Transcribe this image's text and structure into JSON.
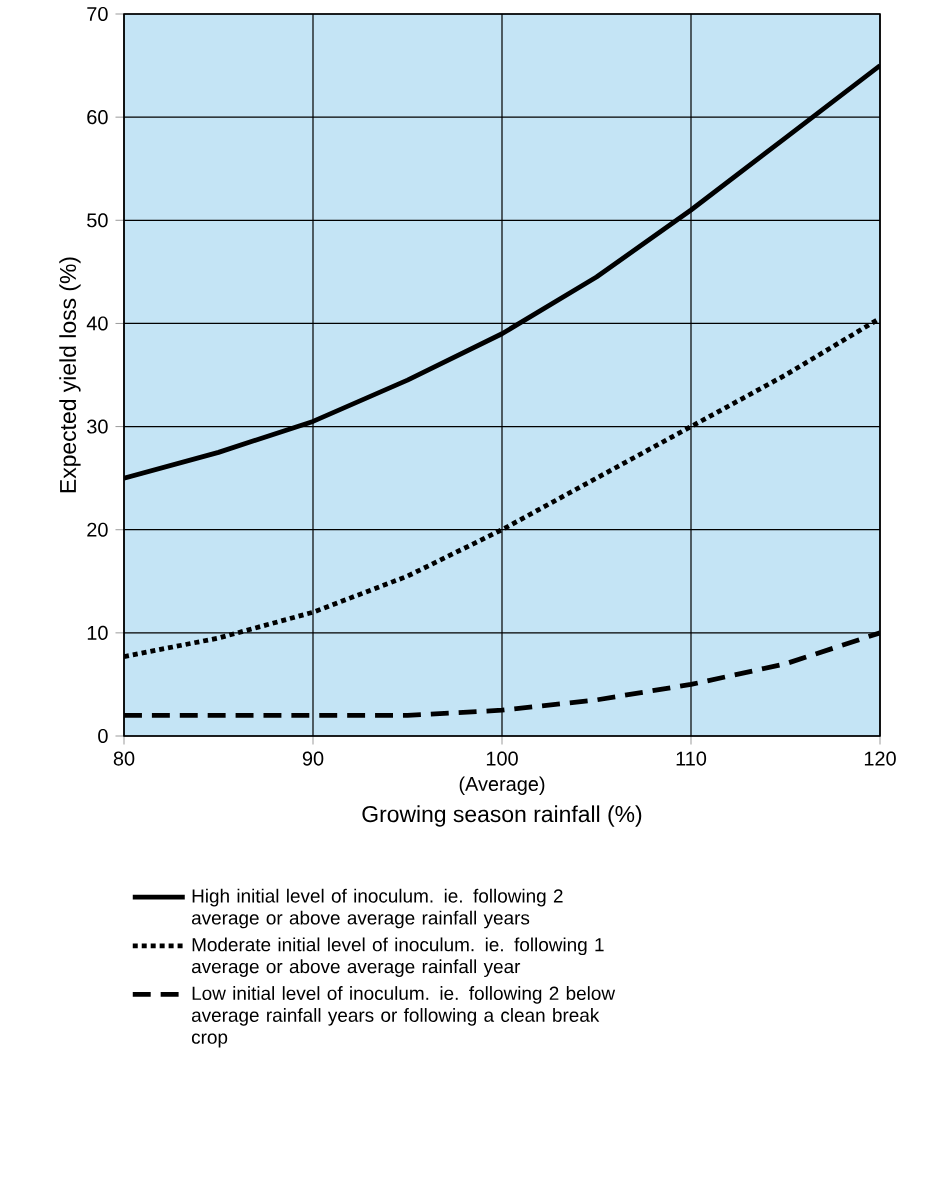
{
  "chart_data": {
    "type": "line",
    "xlabel": "Growing season rainfall (%)",
    "ylabel": "Expected yield loss (%)",
    "x": [
      80,
      85,
      90,
      95,
      100,
      105,
      110,
      115,
      120
    ],
    "series": [
      {
        "name": "High initial level of inoculum. ie. following 2 average or above average rainfall years",
        "color": "#000000",
        "line_style": "solid",
        "values": [
          25,
          27.5,
          30.5,
          34.5,
          39,
          44.5,
          51,
          58,
          65
        ]
      },
      {
        "name": "Moderate initial level of inoculum. ie. following 1 average or above average rainfall year",
        "color": "#000000",
        "line_style": "dotted",
        "values": [
          7.7,
          9.5,
          12,
          15.5,
          20,
          25,
          30,
          35,
          40.5
        ]
      },
      {
        "name": "Low initial level of inoculum. ie. following 2 below average rainfall years or following a clean break crop",
        "color": "#000000",
        "line_style": "dashed",
        "values": [
          2,
          2,
          2,
          2,
          2.5,
          3.5,
          5,
          7,
          10
        ]
      }
    ],
    "xlim": [
      80,
      120
    ],
    "ylim": [
      0,
      70
    ],
    "xticks": [
      80,
      90,
      100,
      110,
      120
    ],
    "yticks": [
      0,
      10,
      20,
      30,
      40,
      50,
      60,
      70
    ],
    "annotations": [
      "(Average)"
    ],
    "grid": true,
    "legend": "bottom",
    "marker": "none"
  }
}
